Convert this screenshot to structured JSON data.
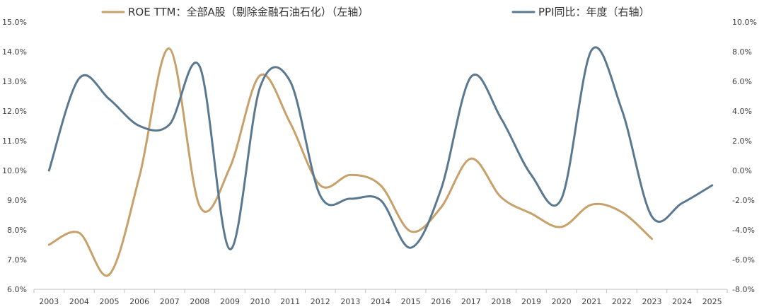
{
  "chart_data": {
    "type": "line",
    "title": "",
    "categories": [
      "2003",
      "2004",
      "2005",
      "2006",
      "2007",
      "2008",
      "2009",
      "2010",
      "2011",
      "2012",
      "2013",
      "2014",
      "2015",
      "2016",
      "2017",
      "2018",
      "2019",
      "2020",
      "2021",
      "2022",
      "2023",
      "2024",
      "2025"
    ],
    "y_left": {
      "range": [
        6.0,
        15.0
      ],
      "ticks": [
        "6.0%",
        "7.0%",
        "8.0%",
        "9.0%",
        "10.0%",
        "11.0%",
        "12.0%",
        "13.0%",
        "14.0%",
        "15.0%"
      ]
    },
    "y_right": {
      "range": [
        -8.0,
        10.0
      ],
      "ticks": [
        "-8.0%",
        "-6.0%",
        "-4.0%",
        "-2.0%",
        "0.0%",
        "2.0%",
        "4.0%",
        "6.0%",
        "8.0%",
        "10.0%"
      ]
    },
    "grid": false,
    "legend_position": "top",
    "series": [
      {
        "name": "ROE TTM：全部A股（剔除金融石油石化）（左轴）",
        "axis": "left",
        "color": "#C8A06A",
        "values": [
          7.5,
          7.9,
          6.5,
          9.8,
          14.1,
          8.8,
          10.1,
          13.2,
          11.6,
          9.5,
          9.85,
          9.5,
          7.95,
          8.75,
          10.4,
          9.1,
          8.55,
          8.1,
          8.85,
          8.6,
          7.7,
          null,
          null
        ]
      },
      {
        "name": "PPI同比：年度（右轴）",
        "axis": "right",
        "color": "#5A7890",
        "values": [
          0.0,
          6.2,
          4.8,
          3.0,
          3.1,
          7.0,
          -5.3,
          5.6,
          6.0,
          -1.7,
          -1.9,
          -2.0,
          -5.2,
          -1.3,
          6.3,
          3.5,
          -0.3,
          -1.9,
          8.1,
          4.1,
          -3.1,
          -2.2,
          -1.0
        ]
      }
    ]
  }
}
